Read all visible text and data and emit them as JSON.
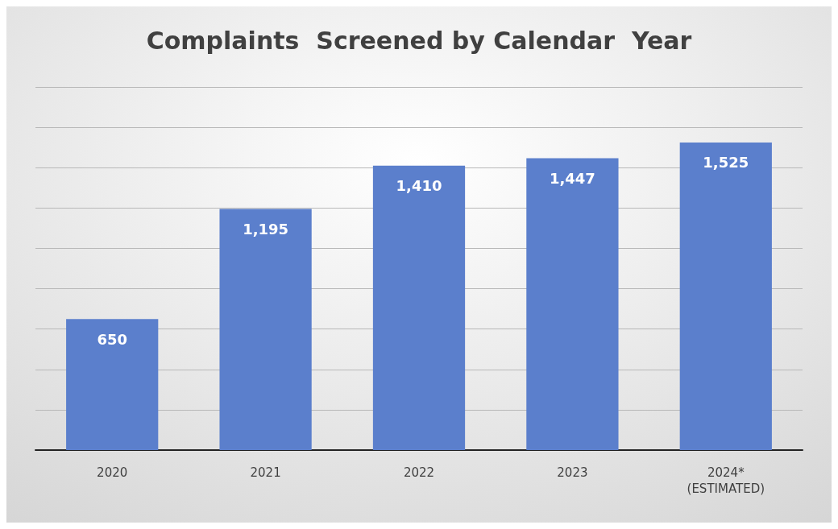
{
  "chart_data": {
    "type": "bar",
    "title": "Complaints  Screened by Calendar  Year",
    "categories": [
      "2020",
      "2021",
      "2022",
      "2023",
      "2024*\n(ESTIMATED)"
    ],
    "values": [
      650,
      1195,
      1410,
      1447,
      1525
    ],
    "value_labels": [
      "650",
      "1,195",
      "1,410",
      "1,447",
      "1,525"
    ],
    "color": "#5b7fcc",
    "ylim": [
      0,
      1800
    ],
    "yticks": [
      {
        "value": 0,
        "label": null
      },
      {
        "value": 200,
        "label": null
      },
      {
        "value": 400,
        "label": null
      },
      {
        "value": 600,
        "label": null
      },
      {
        "value": 800,
        "label": null
      },
      {
        "value": 1000,
        "label": null
      },
      {
        "value": 1200,
        "label": null
      },
      {
        "value": 1400,
        "label": null
      },
      {
        "value": 1600,
        "label": null
      },
      {
        "value": 1800,
        "label": null
      }
    ],
    "grid": "y",
    "tick_labels": "x"
  }
}
